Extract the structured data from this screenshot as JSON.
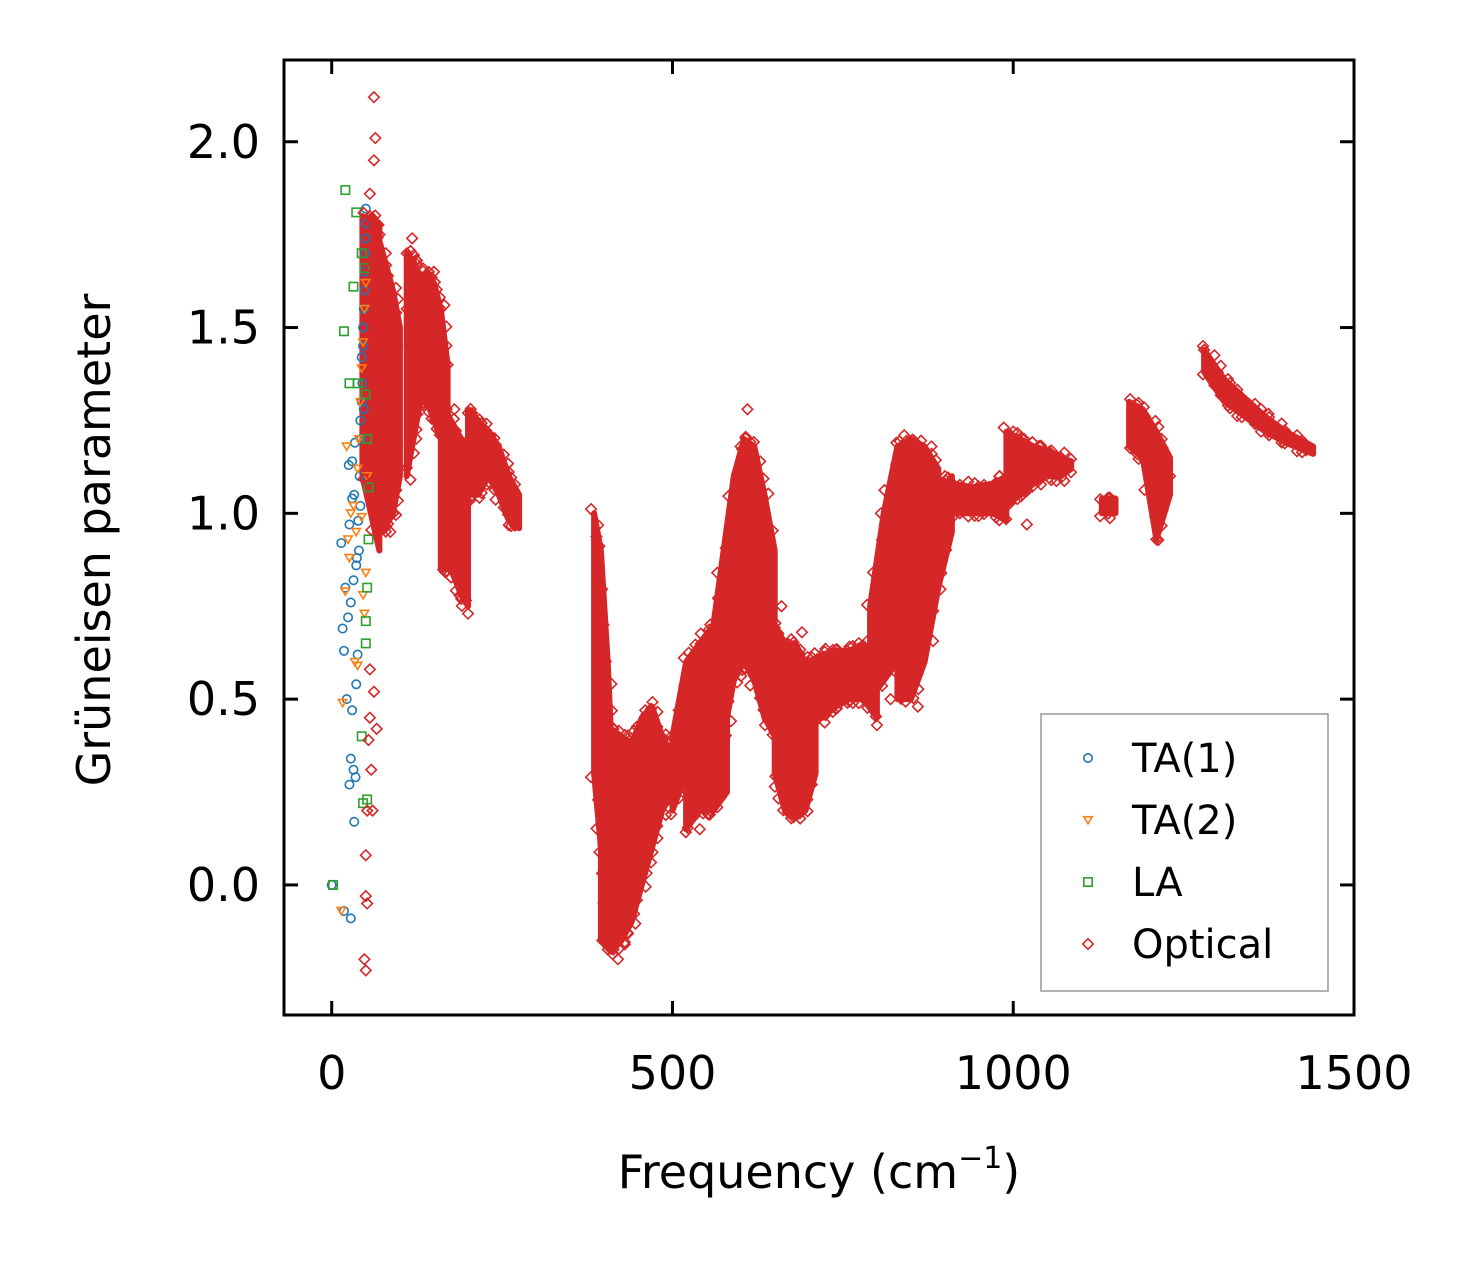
{
  "chart_data": {
    "type": "scatter",
    "xlabel": "Frequency (cm",
    "xlabel_sup": "−1",
    "xlabel_suffix": ")",
    "ylabel": "Grüneisen parameter",
    "xlim": [
      -70,
      1500
    ],
    "ylim": [
      -0.35,
      2.22
    ],
    "xticks": [
      0,
      500,
      1000,
      1500
    ],
    "xtick_labels": [
      "0",
      "500",
      "1000",
      "1500"
    ],
    "yticks": [
      0.0,
      0.5,
      1.0,
      1.5,
      2.0
    ],
    "ytick_labels": [
      "0.0",
      "0.5",
      "1.0",
      "1.5",
      "2.0"
    ],
    "grid": false,
    "legend_position": "bottom-right",
    "series": [
      {
        "name": "TA(1)",
        "marker": "circle",
        "color": "#1f77b4",
        "points": [
          [
            0,
            0.0
          ],
          [
            18,
            -0.07
          ],
          [
            28,
            -0.09
          ],
          [
            14,
            0.92
          ],
          [
            20,
            0.8
          ],
          [
            24,
            0.72
          ],
          [
            16,
            0.69
          ],
          [
            18,
            0.63
          ],
          [
            28,
            0.76
          ],
          [
            32,
            0.82
          ],
          [
            36,
            0.86
          ],
          [
            26,
            0.97
          ],
          [
            30,
            1.04
          ],
          [
            33,
            1.05
          ],
          [
            25,
            1.13
          ],
          [
            30,
            1.14
          ],
          [
            34,
            1.19
          ],
          [
            22,
            0.5
          ],
          [
            30,
            0.47
          ],
          [
            28,
            0.34
          ],
          [
            32,
            0.31
          ],
          [
            35,
            0.29
          ],
          [
            26,
            0.27
          ],
          [
            33,
            0.17
          ],
          [
            36,
            0.54
          ],
          [
            38,
            0.62
          ],
          [
            40,
            0.9
          ],
          [
            42,
            1.02
          ],
          [
            42,
            1.25
          ],
          [
            44,
            1.3
          ],
          [
            44,
            1.42
          ],
          [
            46,
            1.45
          ],
          [
            46,
            1.5
          ],
          [
            47,
            1.55
          ],
          [
            48,
            1.6
          ],
          [
            48,
            1.65
          ],
          [
            49,
            1.7
          ],
          [
            50,
            1.74
          ],
          [
            51,
            1.78
          ],
          [
            50,
            1.82
          ],
          [
            45,
            1.35
          ],
          [
            47,
            1.28
          ],
          [
            43,
            1.2
          ],
          [
            41,
            1.1
          ],
          [
            39,
            0.98
          ],
          [
            37,
            0.88
          ]
        ]
      },
      {
        "name": "TA(2)",
        "marker": "triangle",
        "color": "#ff7f0e",
        "points": [
          [
            14,
            -0.07
          ],
          [
            16,
            0.49
          ],
          [
            20,
            0.79
          ],
          [
            24,
            0.93
          ],
          [
            26,
            0.88
          ],
          [
            22,
            1.18
          ],
          [
            28,
            1.0
          ],
          [
            32,
            1.02
          ],
          [
            36,
            0.95
          ],
          [
            34,
            0.6
          ],
          [
            38,
            0.59
          ],
          [
            38,
            1.12
          ],
          [
            40,
            1.2
          ],
          [
            42,
            1.3
          ],
          [
            44,
            1.39
          ],
          [
            46,
            1.46
          ],
          [
            48,
            1.55
          ],
          [
            50,
            1.62
          ],
          [
            46,
            0.78
          ],
          [
            48,
            0.73
          ],
          [
            50,
            0.84
          ],
          [
            44,
            0.99
          ],
          [
            52,
            1.1
          ]
        ]
      },
      {
        "name": "LA",
        "marker": "square",
        "color": "#2ca02c",
        "points": [
          [
            2,
            0.0
          ],
          [
            20,
            1.87
          ],
          [
            36,
            1.81
          ],
          [
            32,
            1.61
          ],
          [
            18,
            1.49
          ],
          [
            26,
            1.35
          ],
          [
            38,
            1.35
          ],
          [
            44,
            1.7
          ],
          [
            48,
            1.66
          ],
          [
            50,
            1.32
          ],
          [
            52,
            1.2
          ],
          [
            54,
            1.07
          ],
          [
            54,
            0.93
          ],
          [
            52,
            0.8
          ],
          [
            50,
            0.71
          ],
          [
            50,
            0.65
          ],
          [
            46,
            0.22
          ],
          [
            52,
            0.23
          ],
          [
            44,
            0.4
          ]
        ]
      },
      {
        "name": "Optical",
        "marker": "diamond",
        "color": "#d62728",
        "points": [
          [
            62,
            2.12
          ],
          [
            64,
            2.01
          ],
          [
            62,
            1.95
          ],
          [
            56,
            1.86
          ],
          [
            56,
            1.8
          ],
          [
            58,
            1.66
          ],
          [
            60,
            1.58
          ],
          [
            56,
            0.58
          ],
          [
            62,
            0.52
          ],
          [
            56,
            0.45
          ],
          [
            54,
            0.39
          ],
          [
            58,
            0.31
          ],
          [
            52,
            0.2
          ],
          [
            50,
            0.08
          ],
          [
            50,
            -0.03
          ],
          [
            52,
            -0.05
          ],
          [
            48,
            -0.2
          ],
          [
            50,
            -0.23
          ],
          [
            60,
            0.2
          ],
          [
            66,
            0.42
          ],
          [
            70,
            1.75
          ],
          [
            75,
            1.48
          ],
          [
            80,
            1.1
          ],
          [
            86,
            0.95
          ],
          [
            90,
            1.0
          ],
          [
            96,
            1.45
          ],
          [
            110,
            1.55
          ],
          [
            118,
            1.74
          ],
          [
            125,
            1.68
          ],
          [
            135,
            1.62
          ],
          [
            150,
            1.65
          ],
          [
            160,
            1.55
          ],
          [
            170,
            1.4
          ],
          [
            180,
            1.28
          ],
          [
            200,
            1.27
          ],
          [
            215,
            1.23
          ],
          [
            230,
            1.18
          ],
          [
            245,
            1.1
          ],
          [
            260,
            1.0
          ],
          [
            270,
            0.97
          ],
          [
            190,
            0.77
          ],
          [
            200,
            0.73
          ],
          [
            410,
            0.32
          ],
          [
            420,
            -0.2
          ],
          [
            430,
            -0.16
          ],
          [
            440,
            0.0
          ],
          [
            460,
            0.47
          ],
          [
            470,
            0.4
          ],
          [
            480,
            0.3
          ],
          [
            500,
            0.33
          ],
          [
            520,
            0.36
          ],
          [
            540,
            0.15
          ],
          [
            555,
            0.2
          ],
          [
            570,
            0.6
          ],
          [
            600,
            1.18
          ],
          [
            610,
            1.28
          ],
          [
            620,
            1.12
          ],
          [
            640,
            0.9
          ],
          [
            660,
            0.75
          ],
          [
            680,
            0.2
          ],
          [
            690,
            0.68
          ],
          [
            700,
            0.6
          ],
          [
            720,
            0.58
          ],
          [
            740,
            0.5
          ],
          [
            760,
            0.55
          ],
          [
            780,
            0.6
          ],
          [
            800,
            0.43
          ],
          [
            820,
            0.5
          ],
          [
            830,
            0.65
          ],
          [
            840,
            1.21
          ],
          [
            860,
            0.48
          ],
          [
            880,
            1.18
          ],
          [
            900,
            1.1
          ],
          [
            920,
            1.05
          ],
          [
            950,
            1.02
          ],
          [
            980,
            1.1
          ],
          [
            1000,
            1.22
          ],
          [
            1020,
            0.97
          ],
          [
            1040,
            1.18
          ],
          [
            1060,
            1.15
          ],
          [
            1080,
            1.12
          ],
          [
            1140,
            1.02
          ],
          [
            1180,
            1.28
          ],
          [
            1200,
            1.2
          ],
          [
            1210,
            0.93
          ],
          [
            1230,
            1.1
          ],
          [
            1280,
            1.44
          ],
          [
            1300,
            1.38
          ],
          [
            1330,
            1.3
          ],
          [
            1360,
            1.25
          ],
          [
            1400,
            1.2
          ],
          [
            1430,
            1.17
          ]
        ],
        "bands": [
          {
            "x": [
              45,
              70
            ],
            "y_lo": [
              1.1,
              0.9
            ],
            "y_hi": [
              1.8,
              1.78
            ]
          },
          {
            "x": [
              60,
              75,
              90,
              100
            ],
            "y_lo": [
              1.0,
              0.95,
              1.0,
              1.1
            ],
            "y_hi": [
              1.8,
              1.7,
              1.6,
              1.5
            ]
          },
          {
            "x": [
              110,
              120,
              130,
              140,
              150,
              160,
              170
            ],
            "y_lo": [
              1.1,
              1.2,
              1.3,
              1.3,
              1.25,
              1.2,
              1.15
            ],
            "y_hi": [
              1.7,
              1.68,
              1.62,
              1.65,
              1.62,
              1.55,
              1.4
            ]
          },
          {
            "x": [
              160,
              175,
              190,
              200
            ],
            "y_lo": [
              0.85,
              0.85,
              0.78,
              0.75
            ],
            "y_hi": [
              1.3,
              1.25,
              1.2,
              1.15
            ]
          },
          {
            "x": [
              200,
              215,
              230,
              245,
              260,
              275
            ],
            "y_lo": [
              1.05,
              1.05,
              1.1,
              1.05,
              0.98,
              0.96
            ],
            "y_hi": [
              1.28,
              1.25,
              1.22,
              1.18,
              1.1,
              1.05
            ]
          },
          {
            "x": [
              385,
              395,
              405,
              410
            ],
            "y_lo": [
              0.3,
              0.1,
              -0.1,
              -0.15
            ],
            "y_hi": [
              1.0,
              0.9,
              0.6,
              0.4
            ]
          },
          {
            "x": [
              395,
              410,
              425,
              440,
              455,
              470,
              485,
              500
            ],
            "y_lo": [
              -0.15,
              -0.18,
              -0.15,
              -0.1,
              0.0,
              0.1,
              0.2,
              0.25
            ],
            "y_hi": [
              0.45,
              0.42,
              0.4,
              0.38,
              0.45,
              0.48,
              0.4,
              0.35
            ]
          },
          {
            "x": [
              500,
              520,
              540,
              560,
              575,
              590,
              605,
              620,
              635,
              650
            ],
            "y_lo": [
              0.2,
              0.3,
              0.4,
              0.35,
              0.4,
              0.55,
              0.6,
              0.55,
              0.45,
              0.4
            ],
            "y_hi": [
              0.4,
              0.6,
              0.65,
              0.7,
              0.9,
              1.1,
              1.2,
              1.18,
              1.05,
              0.9
            ]
          },
          {
            "x": [
              520,
              540,
              560,
              580
            ],
            "y_lo": [
              0.15,
              0.2,
              0.2,
              0.25
            ],
            "y_hi": [
              0.35,
              0.4,
              0.45,
              0.45
            ]
          },
          {
            "x": [
              650,
              665,
              680,
              695,
              710
            ],
            "y_lo": [
              0.3,
              0.2,
              0.18,
              0.2,
              0.3
            ],
            "y_hi": [
              0.7,
              0.65,
              0.65,
              0.6,
              0.55
            ]
          },
          {
            "x": [
              700,
              720,
              740,
              760,
              780,
              800
            ],
            "y_lo": [
              0.45,
              0.45,
              0.48,
              0.5,
              0.5,
              0.45
            ],
            "y_hi": [
              0.6,
              0.62,
              0.63,
              0.63,
              0.65,
              0.6
            ]
          },
          {
            "x": [
              790,
              810,
              830,
              850,
              870,
              890
            ],
            "y_lo": [
              0.5,
              0.55,
              0.6,
              0.75,
              0.9,
              0.95
            ],
            "y_hi": [
              0.75,
              1.0,
              1.18,
              1.2,
              1.18,
              1.12
            ]
          },
          {
            "x": [
              830,
              850,
              870,
              890,
              910
            ],
            "y_lo": [
              0.5,
              0.5,
              0.6,
              0.8,
              0.95
            ],
            "y_hi": [
              0.8,
              0.9,
              1.0,
              1.05,
              1.1
            ]
          },
          {
            "x": [
              880,
              910,
              940,
              970,
              990
            ],
            "y_lo": [
              1.0,
              1.0,
              1.0,
              1.0,
              0.98
            ],
            "y_hi": [
              1.1,
              1.08,
              1.07,
              1.08,
              1.1
            ]
          },
          {
            "x": [
              990,
              1010,
              1030,
              1050,
              1070,
              1085
            ],
            "y_lo": [
              1.02,
              1.05,
              1.08,
              1.1,
              1.1,
              1.12
            ],
            "y_hi": [
              1.22,
              1.2,
              1.18,
              1.17,
              1.15,
              1.14
            ]
          },
          {
            "x": [
              1130,
              1150
            ],
            "y_lo": [
              1.0,
              1.0
            ],
            "y_hi": [
              1.04,
              1.04
            ]
          },
          {
            "x": [
              1170,
              1190,
              1210,
              1230
            ],
            "y_lo": [
              1.18,
              1.15,
              0.93,
              1.05
            ],
            "y_hi": [
              1.3,
              1.28,
              1.22,
              1.15
            ]
          },
          {
            "x": [
              1280,
              1310,
              1340,
              1370,
              1400,
              1440
            ],
            "y_lo": [
              1.38,
              1.3,
              1.26,
              1.22,
              1.19,
              1.16
            ],
            "y_hi": [
              1.44,
              1.36,
              1.31,
              1.26,
              1.22,
              1.18
            ]
          }
        ]
      }
    ]
  }
}
